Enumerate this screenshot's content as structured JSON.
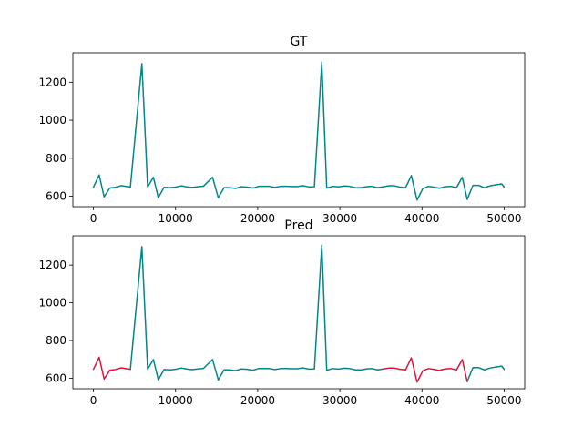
{
  "chart_data": [
    {
      "type": "line",
      "title": "GT",
      "xlabel": "",
      "ylabel": "",
      "xlim": [
        -2500,
        52500
      ],
      "ylim": [
        545,
        1355
      ],
      "x_ticks": [
        0,
        10000,
        20000,
        30000,
        40000,
        50000
      ],
      "x_tick_labels": [
        "0",
        "10000",
        "20000",
        "30000",
        "40000",
        "50000"
      ],
      "y_ticks": [
        600,
        800,
        1000,
        1200
      ],
      "y_tick_labels": [
        "600",
        "800",
        "1000",
        "1200"
      ],
      "grid": false,
      "series": [
        {
          "color": "#00868b",
          "x": [
            0,
            700,
            1300,
            2000,
            2700,
            3400,
            4500,
            5900,
            6600,
            7300,
            7900,
            8600,
            9300,
            10000,
            10700,
            11300,
            12000,
            12700,
            13400,
            14500,
            15200,
            15900,
            16600,
            17300,
            18000,
            18700,
            19400,
            20100,
            20700,
            21400,
            22100,
            22800,
            23500,
            24200,
            24800,
            25500,
            26200,
            26900,
            27800,
            28400,
            29100,
            29800,
            30500,
            31200,
            31900,
            32600,
            33200,
            33900,
            34600,
            35300,
            36000,
            36600,
            37300,
            38000,
            38700,
            39400,
            40100,
            40800,
            41400,
            42100,
            42800,
            43500,
            44200,
            44900,
            45500,
            46200,
            46900,
            47600,
            48300,
            49000,
            49700,
            50000
          ],
          "y": [
            648,
            712,
            597,
            643,
            647,
            656,
            648,
            1298,
            648,
            700,
            592,
            647,
            645,
            648,
            655,
            650,
            646,
            650,
            653,
            700,
            592,
            645,
            645,
            641,
            650,
            648,
            643,
            652,
            652,
            652,
            647,
            652,
            652,
            651,
            651,
            656,
            649,
            650,
            1305,
            643,
            652,
            649,
            654,
            652,
            645,
            645,
            650,
            652,
            645,
            650,
            655,
            655,
            648,
            645,
            709,
            580,
            640,
            652,
            648,
            642,
            650,
            652,
            645,
            700,
            583,
            657,
            657,
            645,
            655,
            660,
            665,
            648
          ]
        }
      ]
    },
    {
      "type": "line",
      "title": "Pred",
      "xlabel": "",
      "ylabel": "",
      "xlim": [
        -2500,
        52500
      ],
      "ylim": [
        545,
        1355
      ],
      "x_ticks": [
        0,
        10000,
        20000,
        30000,
        40000,
        50000
      ],
      "x_tick_labels": [
        "0",
        "10000",
        "20000",
        "30000",
        "40000",
        "50000"
      ],
      "y_ticks": [
        600,
        800,
        1000,
        1200
      ],
      "y_tick_labels": [
        "600",
        "800",
        "1000",
        "1200"
      ],
      "grid": false,
      "series": [
        {
          "color": "#dc143c",
          "x": [
            0,
            700,
            1300,
            2000,
            2700,
            3400,
            4500
          ],
          "y": [
            648,
            712,
            597,
            643,
            647,
            656,
            648
          ]
        },
        {
          "color": "#00868b",
          "x": [
            4500,
            5900,
            6600,
            7300,
            7900,
            8600,
            9300,
            10000,
            10700,
            11300,
            12000,
            12700,
            13400,
            14500,
            15200,
            15900,
            16600,
            17300,
            18000,
            18700,
            19400,
            20100,
            20700,
            21400,
            22100,
            22800,
            23500,
            24200,
            24800,
            25500,
            26200,
            26900,
            27800,
            28400,
            29100,
            29800,
            30500,
            31200,
            31900,
            32600,
            33200,
            33900,
            34600,
            35300
          ],
          "y": [
            648,
            1298,
            648,
            700,
            592,
            647,
            645,
            648,
            655,
            650,
            646,
            650,
            653,
            700,
            592,
            645,
            645,
            641,
            650,
            648,
            643,
            652,
            652,
            652,
            647,
            652,
            652,
            651,
            651,
            656,
            649,
            650,
            1305,
            643,
            652,
            649,
            654,
            652,
            645,
            645,
            650,
            652,
            645,
            650
          ]
        },
        {
          "color": "#dc143c",
          "x": [
            35300,
            36000,
            36600,
            37300,
            38000,
            38700,
            39400,
            40100,
            40800,
            41400,
            42100,
            42800,
            43500,
            44200,
            44900,
            45500
          ],
          "y": [
            650,
            655,
            655,
            648,
            645,
            709,
            580,
            640,
            652,
            648,
            642,
            650,
            652,
            645,
            700,
            583
          ]
        },
        {
          "color": "#00868b",
          "x": [
            45500,
            46200,
            46900,
            47600,
            48300,
            49000,
            49700,
            50000
          ],
          "y": [
            583,
            657,
            657,
            645,
            655,
            660,
            665,
            648
          ]
        }
      ]
    }
  ]
}
